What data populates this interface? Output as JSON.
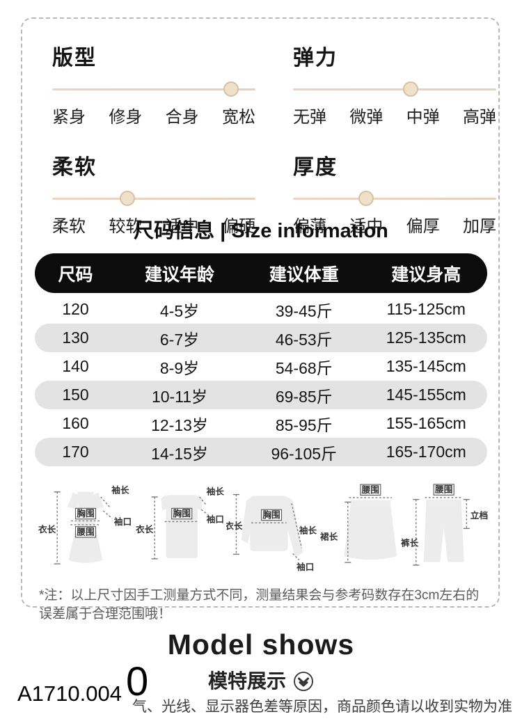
{
  "attributes": {
    "items": [
      {
        "title": "版型",
        "labels": [
          "紧身",
          "修身",
          "合身",
          "宽松"
        ],
        "value_pct": 88
      },
      {
        "title": "弹力",
        "labels": [
          "无弹",
          "微弹",
          "中弹",
          "高弹"
        ],
        "value_pct": 58
      },
      {
        "title": "柔软",
        "labels": [
          "柔软",
          "较软",
          "适中",
          "偏硬"
        ],
        "value_pct": 37
      },
      {
        "title": "厚度",
        "labels": [
          "偏薄",
          "适中",
          "偏厚",
          "加厚"
        ],
        "value_pct": 36
      }
    ]
  },
  "size_section": {
    "title": "尺码信息 | Size information",
    "headers": [
      "尺码",
      "建议年龄",
      "建议体重",
      "建议身高"
    ],
    "rows": [
      [
        "120",
        "4-5岁",
        "39-45斤",
        "115-125cm"
      ],
      [
        "130",
        "6-7岁",
        "46-53斤",
        "125-135cm"
      ],
      [
        "140",
        "8-9岁",
        "54-68斤",
        "135-145cm"
      ],
      [
        "150",
        "10-11岁",
        "69-85斤",
        "145-155cm"
      ],
      [
        "160",
        "12-13岁",
        "85-95斤",
        "155-165cm"
      ],
      [
        "170",
        "14-15岁",
        "96-105斤",
        "165-170cm"
      ]
    ],
    "note": "*注：以上尺寸因手工测量方式不同，测量结果会与参考码数存在3cm左右的误差属于合理范围哦！"
  },
  "diagrams": {
    "dress": {
      "length": "衣长",
      "bust": "胸围",
      "waist": "腰围",
      "sleeve": "袖长",
      "cuff": "袖口"
    },
    "tshirt": {
      "length": "衣长",
      "bust": "胸围",
      "sleeve": "袖长",
      "cuff": "袖口"
    },
    "sweater": {
      "length": "衣长",
      "bust": "胸围",
      "sleeve": "袖长",
      "cuff": "袖口"
    },
    "skirt": {
      "waist": "腰围",
      "length": "裙长"
    },
    "pants": {
      "waist": "腰围",
      "rise": "立档",
      "length": "裤长"
    }
  },
  "footer": {
    "title_en": "Model shows",
    "title_zh": "模特展示",
    "disclaimer": "气、光线、显示器色差等原因，商品颜色请以收到实物为准",
    "sku": "A1710.004",
    "overlay_number": "0"
  },
  "colors": {
    "slider_track": "#eed2c2",
    "slider_knob": "#eee0c9",
    "table_header_bg": "#0c0c0c",
    "row_alt_bg": "#e3e3e3"
  }
}
